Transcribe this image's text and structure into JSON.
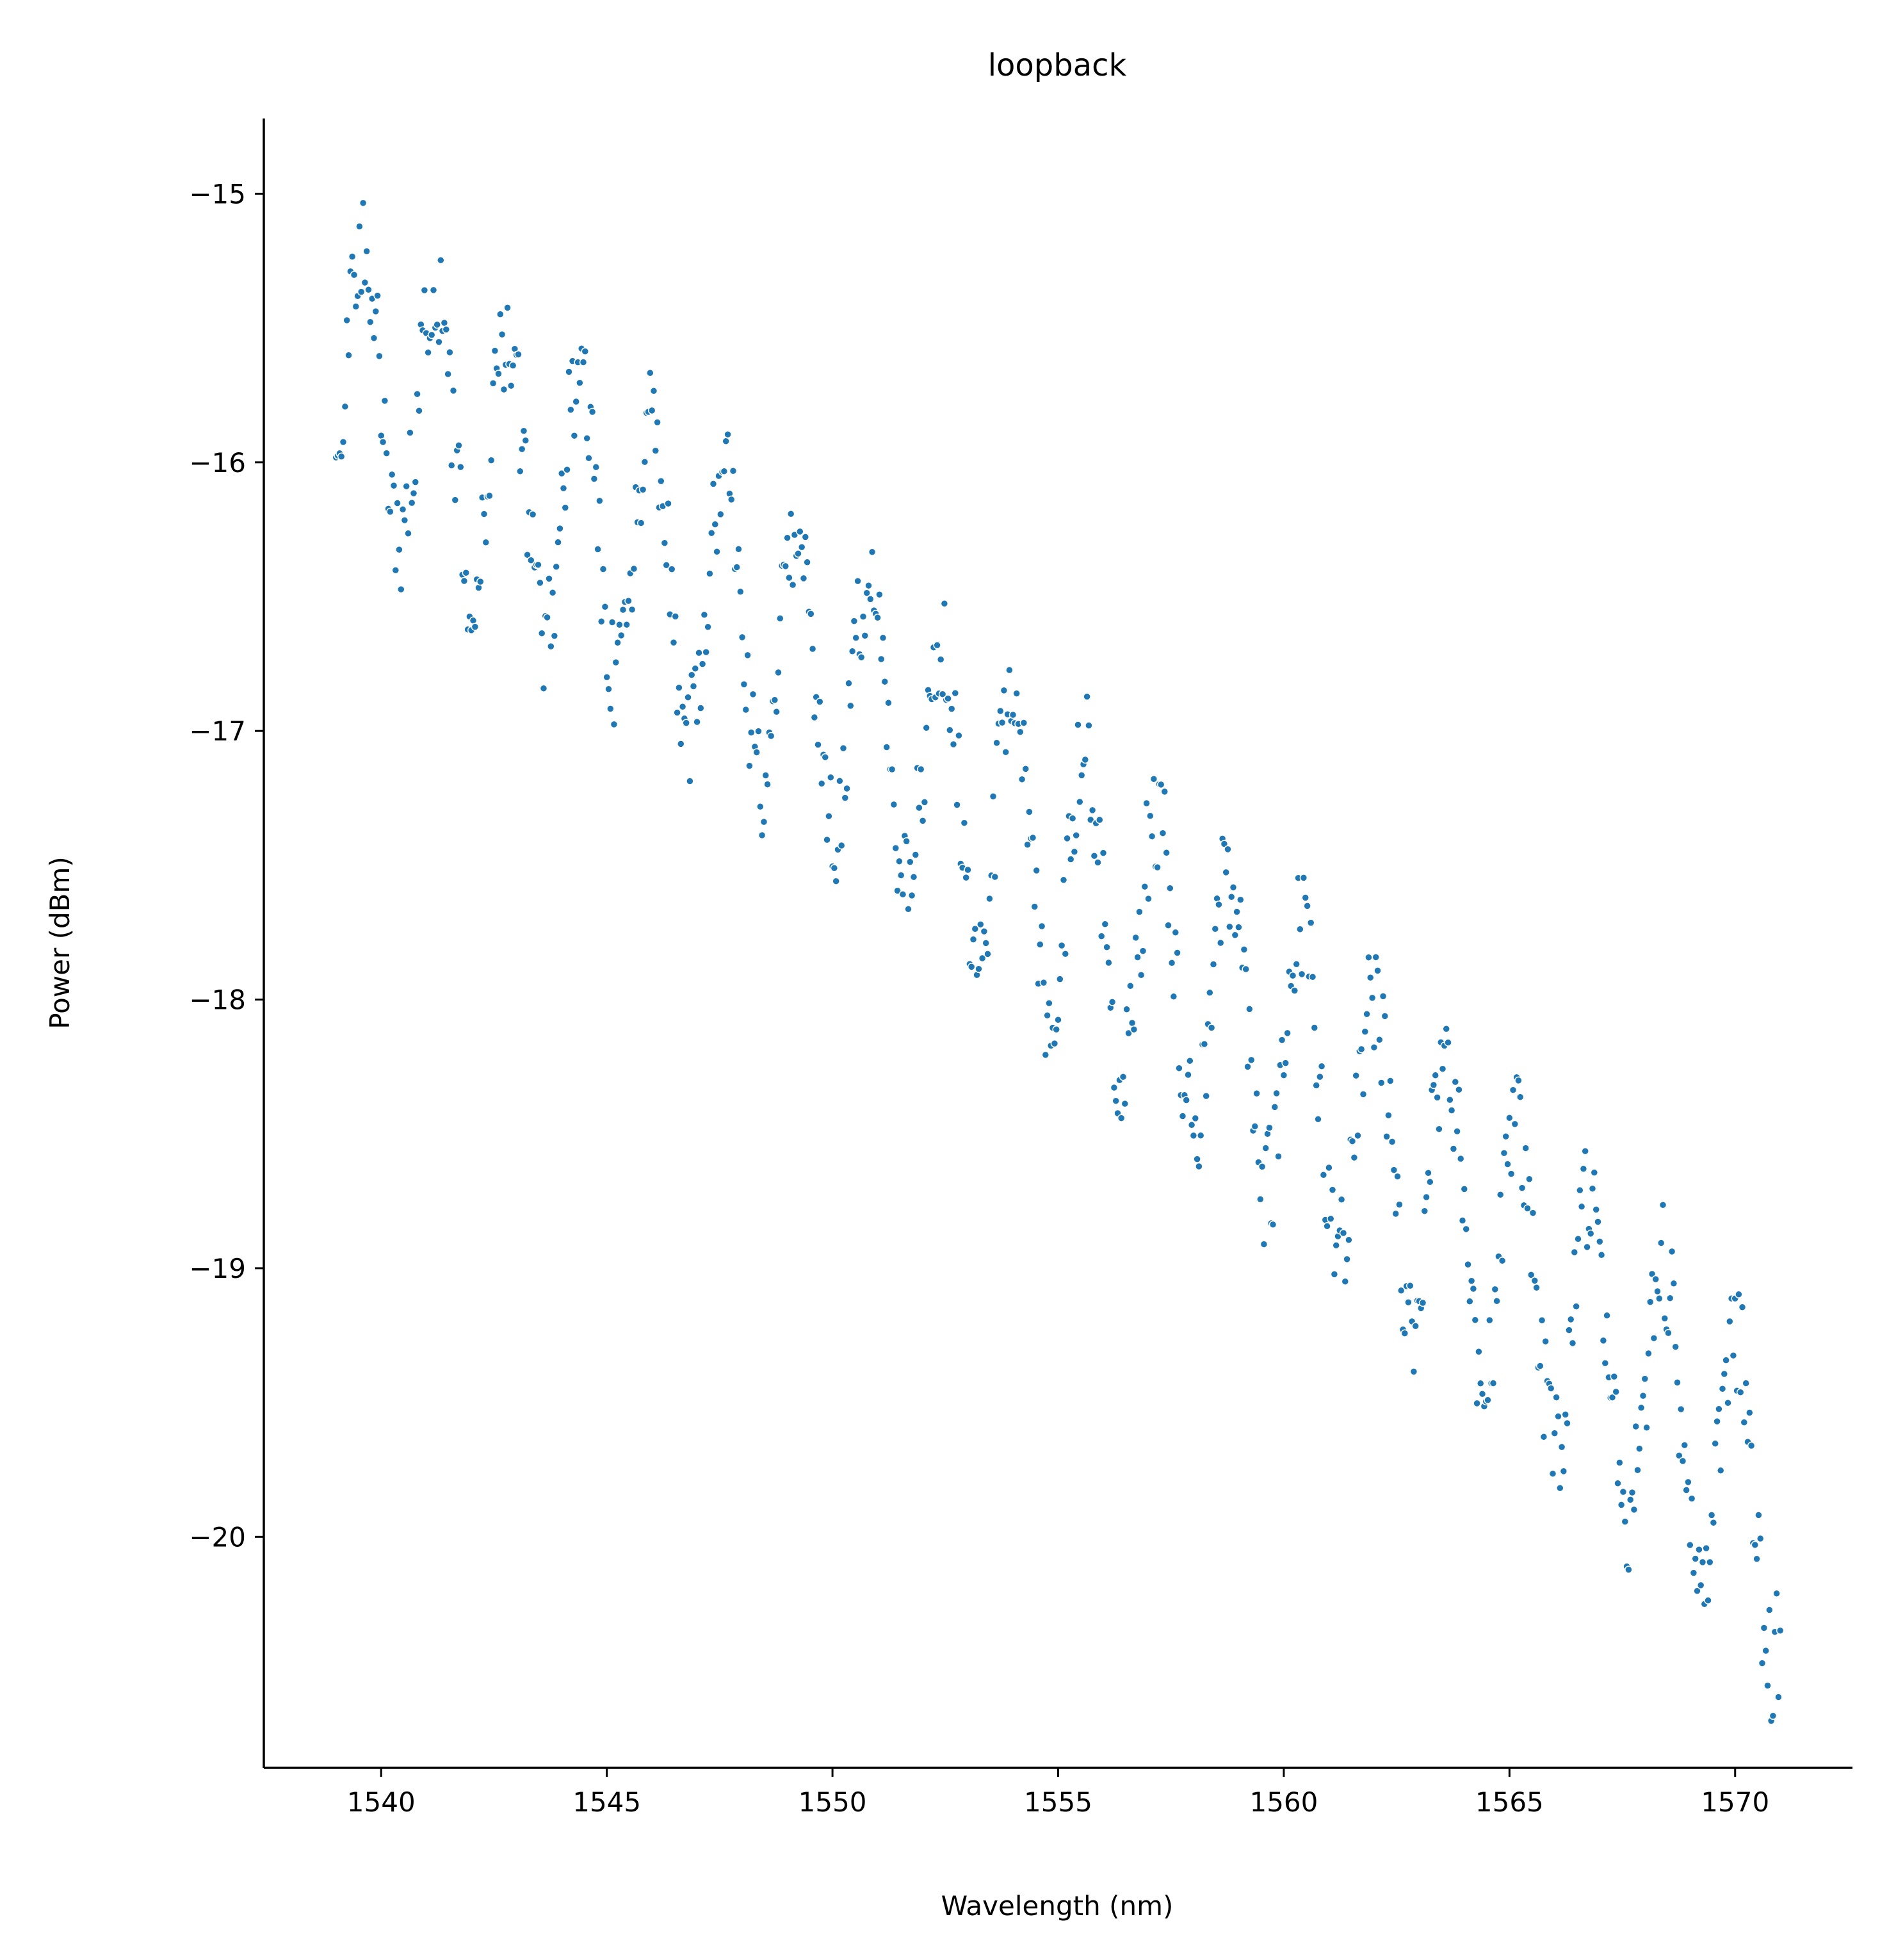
{
  "chart_data": {
    "type": "scatter",
    "title": "loopback",
    "xlabel": "Wavelength (nm)",
    "ylabel": "Power (dBm)",
    "xlim": [
      1537.4,
      1572.6
    ],
    "ylim": [
      -20.86,
      -14.72
    ],
    "xticks": [
      1540,
      1545,
      1550,
      1555,
      1560,
      1565,
      1570
    ],
    "yticks": [
      -15,
      -16,
      -17,
      -18,
      -19,
      -20
    ],
    "xtick_labels": [
      "1540",
      "1545",
      "1550",
      "1555",
      "1560",
      "1565",
      "1570"
    ],
    "ytick_labels": [
      "−15",
      "−16",
      "−17",
      "−18",
      "−19",
      "−20"
    ],
    "grid": false,
    "marker_color": "#1f77b4",
    "series": [
      {
        "x_start": 1539.0,
        "x_end": 1571.0,
        "count": 801,
        "center_start": -15.62,
        "center_end": -19.95,
        "curvature": -2.1,
        "half_width_start": 0.6,
        "half_width_end": 0.65,
        "ripple_period": 1.6
      }
    ]
  }
}
